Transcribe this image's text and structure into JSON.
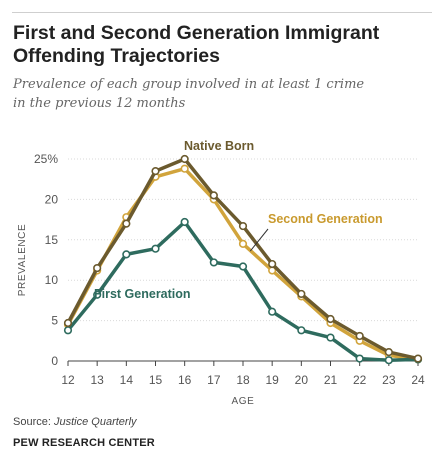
{
  "header": {
    "title_line1": "First and Second Generation Immigrant",
    "title_line2": "Offending Trajectories",
    "subtitle_line1": "Prevalence of each group involved in at least 1 crime",
    "subtitle_line2": "in the previous 12 months"
  },
  "footer": {
    "source_label": "Source:",
    "source_value": "Justice Quarterly",
    "credit": "PEW RESEARCH CENTER"
  },
  "chart_data": {
    "type": "line",
    "xlabel": "AGE",
    "ylabel": "PREVALENCE",
    "x": [
      12,
      13,
      14,
      15,
      16,
      17,
      18,
      19,
      20,
      21,
      22,
      23,
      24
    ],
    "xlim": [
      12,
      24
    ],
    "ylim": [
      0,
      25
    ],
    "yticks": [
      0,
      5,
      10,
      15,
      20,
      25
    ],
    "ytick_labels": [
      "0",
      "5",
      "10",
      "15",
      "20",
      "25%"
    ],
    "grid": true,
    "series": [
      {
        "name": "Native Born",
        "color": "#6b5a2e",
        "label_color": "#6b5a2e",
        "values": [
          4.7,
          11.5,
          17.0,
          23.5,
          25.0,
          20.5,
          16.7,
          12.0,
          8.3,
          5.2,
          3.1,
          1.1,
          0.3
        ]
      },
      {
        "name": "Second Generation",
        "color": "#d1a43c",
        "label_color": "#c99a2e",
        "values": [
          4.5,
          11.2,
          17.8,
          22.8,
          23.8,
          20.0,
          14.5,
          11.2,
          8.0,
          4.7,
          2.5,
          0.7,
          0.2
        ]
      },
      {
        "name": "First Generation",
        "color": "#2e6b5e",
        "label_color": "#2e6b5e",
        "values": [
          3.8,
          8.2,
          13.2,
          13.9,
          17.2,
          12.2,
          11.7,
          6.1,
          3.8,
          2.9,
          0.3,
          0.1,
          0.2
        ]
      }
    ]
  }
}
